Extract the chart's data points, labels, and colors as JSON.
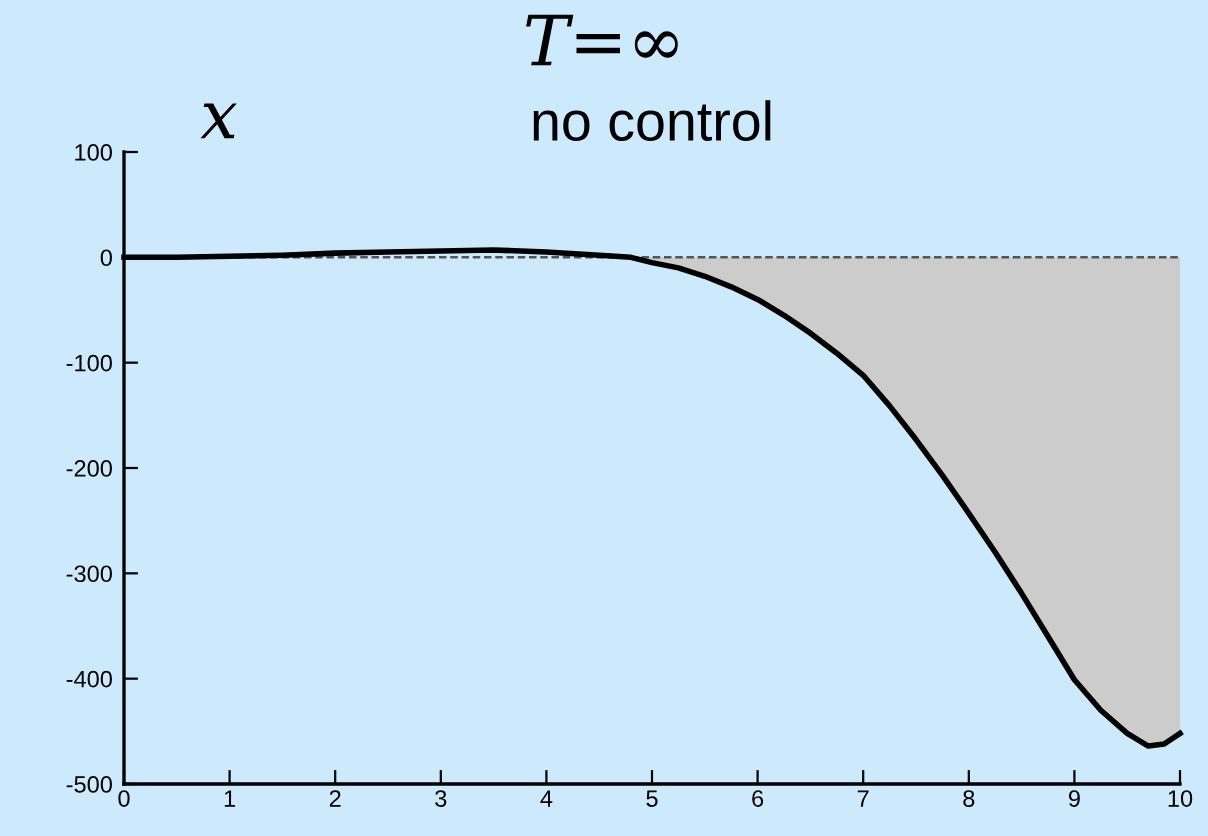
{
  "chart_data": {
    "type": "line",
    "title": "T=∞",
    "subtitle": "no control",
    "ylabel": "x",
    "x": [
      0,
      0.5,
      1,
      1.5,
      2,
      2.5,
      3,
      3.5,
      4,
      4.5,
      4.8,
      5,
      5.25,
      5.5,
      5.75,
      6,
      6.25,
      6.5,
      6.75,
      7,
      7.25,
      7.5,
      7.75,
      8,
      8.25,
      8.5,
      8.75,
      9,
      9.25,
      9.5,
      9.7,
      9.85,
      10
    ],
    "series": [
      {
        "type": "area",
        "color": "#cccccc",
        "x": [
          4.8,
          5,
          5.25,
          5.5,
          5.75,
          6,
          6.25,
          6.5,
          6.75,
          7,
          7.25,
          7.5,
          7.75,
          8,
          8.25,
          8.5,
          8.75,
          9,
          9.25,
          9.5,
          9.7,
          9.85,
          10
        ],
        "values": [
          0,
          -5,
          -10,
          -18,
          -28,
          -40,
          -55,
          -72,
          -91,
          -112,
          -141,
          -173,
          -207,
          -243,
          -280,
          -319,
          -360,
          -401,
          -430,
          -452,
          -464,
          -462,
          -452
        ]
      },
      {
        "type": "line",
        "color": "#000000",
        "values": [
          0,
          0,
          1,
          2,
          4,
          5,
          6,
          7,
          5,
          2,
          0,
          -5,
          -10,
          -18,
          -28,
          -40,
          -55,
          -72,
          -91,
          -112,
          -141,
          -173,
          -207,
          -243,
          -280,
          -319,
          -360,
          -401,
          -430,
          -452,
          -464,
          -462,
          -452
        ]
      }
    ],
    "ref_lines": [
      {
        "axis": "y",
        "value": 0,
        "color": "#555555",
        "line_style": "dashed"
      }
    ],
    "xlim": [
      0,
      10
    ],
    "xticks": [
      0,
      1,
      2,
      3,
      4,
      5,
      6,
      7,
      8,
      9,
      10
    ],
    "ylim": [
      -500,
      100
    ],
    "yticks": [
      100,
      0,
      -100,
      -200,
      -300,
      -400,
      -500
    ],
    "grid": false,
    "legend": false,
    "marker": "none",
    "line_style": "solid"
  }
}
